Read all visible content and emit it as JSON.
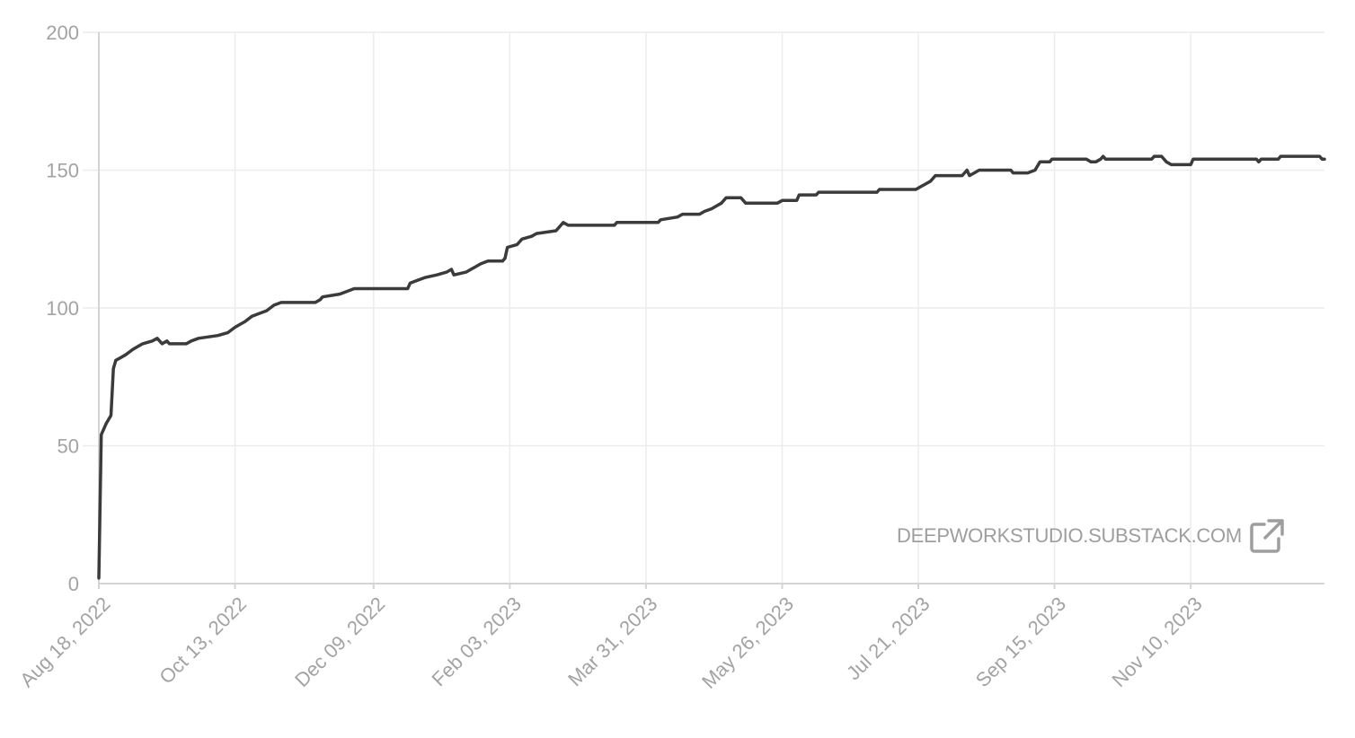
{
  "watermark": {
    "text": "DEEPWORKSTUDIO.SUBSTACK.COM",
    "icon": "external-link-icon"
  },
  "colors": {
    "line": "#3b3b3b",
    "grid": "#ececec",
    "axis": "#d4d4d4",
    "label": "#a3a3a3"
  },
  "chart_data": {
    "type": "line",
    "title": "",
    "xlabel": "",
    "ylabel": "",
    "ylim": [
      0,
      200
    ],
    "yticks": [
      0,
      50,
      100,
      150,
      200
    ],
    "xlim": [
      "2022-08-18",
      "2024-01-04"
    ],
    "xticks": [
      {
        "date": "2022-08-18",
        "label": "Aug 18, 2022"
      },
      {
        "date": "2022-10-13",
        "label": "Oct 13, 2022"
      },
      {
        "date": "2022-12-09",
        "label": "Dec 09, 2022"
      },
      {
        "date": "2023-02-03",
        "label": "Feb 03, 2023"
      },
      {
        "date": "2023-03-31",
        "label": "Mar 31, 2023"
      },
      {
        "date": "2023-05-26",
        "label": "May 26, 2023"
      },
      {
        "date": "2023-07-21",
        "label": "Jul 21, 2023"
      },
      {
        "date": "2023-09-15",
        "label": "Sep 15, 2023"
      },
      {
        "date": "2023-11-10",
        "label": "Nov 10, 2023"
      }
    ],
    "grid": true,
    "legend": "none",
    "series": [
      {
        "points": [
          [
            "2022-08-18",
            2
          ],
          [
            "2022-08-19",
            54
          ],
          [
            "2022-08-21",
            58
          ],
          [
            "2022-08-23",
            61
          ],
          [
            "2022-08-24",
            78
          ],
          [
            "2022-08-25",
            81
          ],
          [
            "2022-08-27",
            82
          ],
          [
            "2022-08-29",
            83
          ],
          [
            "2022-09-01",
            85
          ],
          [
            "2022-09-03",
            86
          ],
          [
            "2022-09-05",
            87
          ],
          [
            "2022-09-09",
            88
          ],
          [
            "2022-09-11",
            89
          ],
          [
            "2022-09-13",
            87
          ],
          [
            "2022-09-15",
            88
          ],
          [
            "2022-09-16",
            87
          ],
          [
            "2022-09-23",
            87
          ],
          [
            "2022-09-25",
            88
          ],
          [
            "2022-09-28",
            89
          ],
          [
            "2022-10-06",
            90
          ],
          [
            "2022-10-10",
            91
          ],
          [
            "2022-10-13",
            93
          ],
          [
            "2022-10-15",
            94
          ],
          [
            "2022-10-17",
            95
          ],
          [
            "2022-10-20",
            97
          ],
          [
            "2022-10-23",
            98
          ],
          [
            "2022-10-26",
            99
          ],
          [
            "2022-10-29",
            101
          ],
          [
            "2022-11-01",
            102
          ],
          [
            "2022-11-15",
            102
          ],
          [
            "2022-11-17",
            103
          ],
          [
            "2022-11-18",
            104
          ],
          [
            "2022-11-25",
            105
          ],
          [
            "2022-11-28",
            106
          ],
          [
            "2022-12-01",
            107
          ],
          [
            "2022-12-23",
            107
          ],
          [
            "2022-12-24",
            109
          ],
          [
            "2022-12-27",
            110
          ],
          [
            "2022-12-30",
            111
          ],
          [
            "2023-01-04",
            112
          ],
          [
            "2023-01-08",
            113
          ],
          [
            "2023-01-10",
            114
          ],
          [
            "2023-01-11",
            112
          ],
          [
            "2023-01-16",
            113
          ],
          [
            "2023-01-18",
            114
          ],
          [
            "2023-01-20",
            115
          ],
          [
            "2023-01-22",
            116
          ],
          [
            "2023-01-25",
            117
          ],
          [
            "2023-01-31",
            117
          ],
          [
            "2023-02-01",
            118
          ],
          [
            "2023-02-02",
            122
          ],
          [
            "2023-02-06",
            123
          ],
          [
            "2023-02-08",
            125
          ],
          [
            "2023-02-12",
            126
          ],
          [
            "2023-02-14",
            127
          ],
          [
            "2023-02-22",
            128
          ],
          [
            "2023-02-24",
            130
          ],
          [
            "2023-02-25",
            131
          ],
          [
            "2023-02-27",
            130
          ],
          [
            "2023-03-18",
            130
          ],
          [
            "2023-03-19",
            131
          ],
          [
            "2023-04-05",
            131
          ],
          [
            "2023-04-06",
            132
          ],
          [
            "2023-04-13",
            133
          ],
          [
            "2023-04-15",
            134
          ],
          [
            "2023-04-22",
            134
          ],
          [
            "2023-04-24",
            135
          ],
          [
            "2023-04-27",
            136
          ],
          [
            "2023-04-29",
            137
          ],
          [
            "2023-05-01",
            138
          ],
          [
            "2023-05-03",
            140
          ],
          [
            "2023-05-09",
            140
          ],
          [
            "2023-05-11",
            138
          ],
          [
            "2023-05-24",
            138
          ],
          [
            "2023-05-26",
            139
          ],
          [
            "2023-06-01",
            139
          ],
          [
            "2023-06-02",
            141
          ],
          [
            "2023-06-09",
            141
          ],
          [
            "2023-06-10",
            142
          ],
          [
            "2023-07-04",
            142
          ],
          [
            "2023-07-05",
            143
          ],
          [
            "2023-07-20",
            143
          ],
          [
            "2023-07-22",
            144
          ],
          [
            "2023-07-24",
            145
          ],
          [
            "2023-07-26",
            146
          ],
          [
            "2023-07-28",
            148
          ],
          [
            "2023-08-08",
            148
          ],
          [
            "2023-08-10",
            150
          ],
          [
            "2023-08-11",
            148
          ],
          [
            "2023-08-13",
            149
          ],
          [
            "2023-08-15",
            150
          ],
          [
            "2023-08-28",
            150
          ],
          [
            "2023-08-29",
            149
          ],
          [
            "2023-09-04",
            149
          ],
          [
            "2023-09-07",
            150
          ],
          [
            "2023-09-09",
            153
          ],
          [
            "2023-09-13",
            153
          ],
          [
            "2023-09-14",
            154
          ],
          [
            "2023-09-28",
            154
          ],
          [
            "2023-09-30",
            153
          ],
          [
            "2023-10-02",
            153
          ],
          [
            "2023-10-04",
            154
          ],
          [
            "2023-10-05",
            155
          ],
          [
            "2023-10-06",
            154
          ],
          [
            "2023-10-25",
            154
          ],
          [
            "2023-10-26",
            155
          ],
          [
            "2023-10-29",
            155
          ],
          [
            "2023-10-31",
            153
          ],
          [
            "2023-11-02",
            152
          ],
          [
            "2023-11-10",
            152
          ],
          [
            "2023-11-11",
            154
          ],
          [
            "2023-12-07",
            154
          ],
          [
            "2023-12-08",
            153
          ],
          [
            "2023-12-09",
            154
          ],
          [
            "2023-12-16",
            154
          ],
          [
            "2023-12-17",
            155
          ],
          [
            "2024-01-02",
            155
          ],
          [
            "2024-01-03",
            154
          ],
          [
            "2024-01-04",
            154
          ]
        ]
      }
    ]
  }
}
